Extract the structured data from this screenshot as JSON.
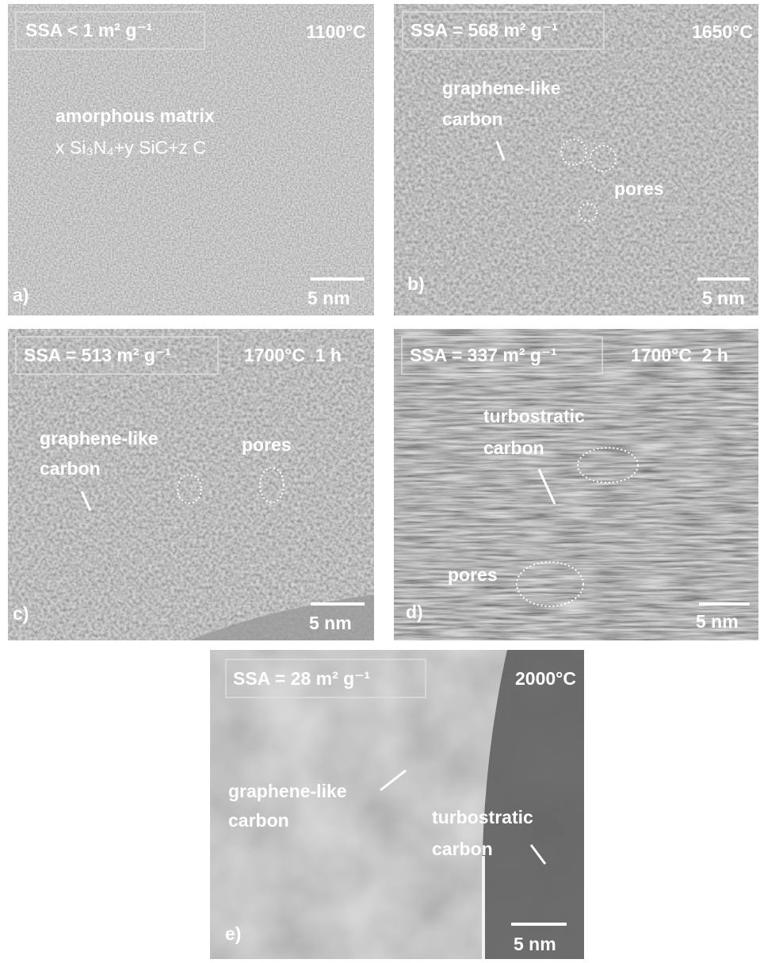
{
  "panels": [
    {
      "label": "a)",
      "ssa": "SSA < 1 m² g⁻¹",
      "condition": "1100°C",
      "scale_bar": "5 nm",
      "annotations": [
        "amorphous matrix",
        "x Si₃N₄+y SiC+z C"
      ]
    },
    {
      "label": "b)",
      "ssa": "SSA = 568 m² g⁻¹",
      "condition": "1650°C",
      "scale_bar": "5 nm",
      "annotations": [
        "graphene-like",
        "carbon",
        "pores"
      ]
    },
    {
      "label": "c)",
      "ssa": "SSA = 513 m² g⁻¹",
      "condition": "1700°C  1 h",
      "scale_bar": "5 nm",
      "annotations": [
        "graphene-like",
        "carbon",
        "pores"
      ]
    },
    {
      "label": "d)",
      "ssa": "SSA = 337 m² g⁻¹",
      "condition": "1700°C  2 h",
      "scale_bar": "5 nm",
      "annotations": [
        "turbostratic",
        "carbon",
        "pores"
      ]
    },
    {
      "label": "e)",
      "ssa": "SSA = 28 m² g⁻¹",
      "condition": "2000°C",
      "scale_bar": "5 nm",
      "annotations": [
        "graphene-like",
        "carbon",
        "turbostratic",
        "carbon"
      ]
    }
  ]
}
